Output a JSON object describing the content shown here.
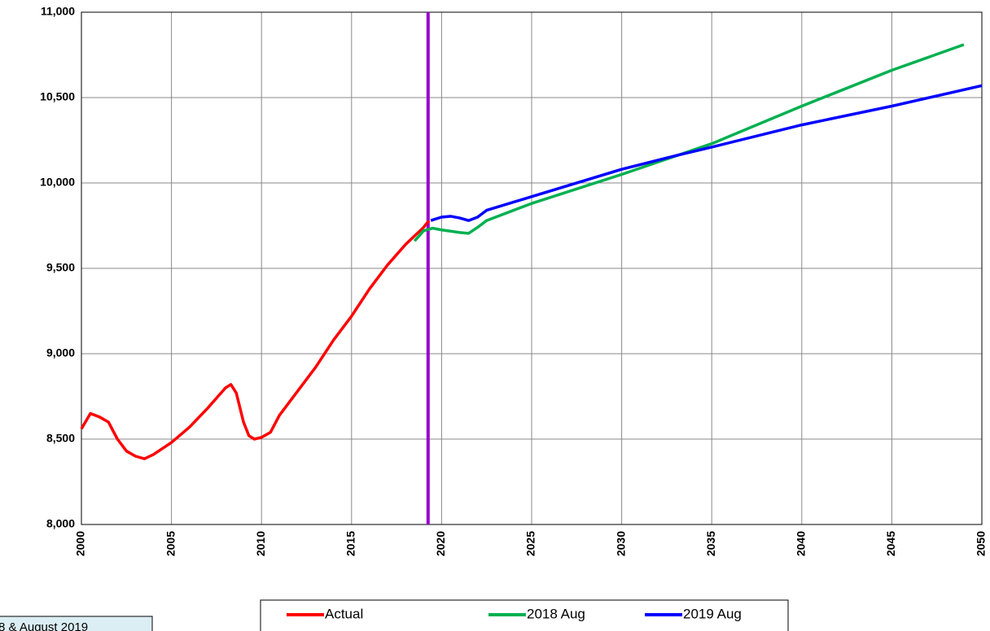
{
  "chart_data": {
    "type": "line",
    "series": [
      {
        "name": "Actual",
        "color": "#ff0000",
        "x": [
          2000,
          2000.5,
          2001,
          2001.5,
          2002,
          2002.5,
          2003,
          2003.5,
          2004,
          2005,
          2006,
          2007,
          2008,
          2008.3,
          2008.6,
          2009,
          2009.3,
          2009.6,
          2010,
          2010.5,
          2011,
          2012,
          2013,
          2014,
          2015,
          2016,
          2017,
          2018,
          2019,
          2019.3
        ],
        "values": [
          8560,
          8650,
          8630,
          8600,
          8500,
          8430,
          8400,
          8385,
          8410,
          8480,
          8570,
          8680,
          8800,
          8820,
          8770,
          8600,
          8520,
          8500,
          8510,
          8540,
          8640,
          8780,
          8920,
          9080,
          9220,
          9380,
          9520,
          9640,
          9740,
          9780
        ]
      },
      {
        "name": "2018 Aug",
        "color": "#00b050",
        "x": [
          2018.5,
          2019,
          2019.5,
          2020,
          2021,
          2021.5,
          2022,
          2022.5,
          2025,
          2030,
          2035,
          2040,
          2045,
          2049
        ],
        "values": [
          9660,
          9720,
          9735,
          9725,
          9710,
          9705,
          9740,
          9780,
          9880,
          10050,
          10230,
          10450,
          10660,
          10810
        ]
      },
      {
        "name": "2019 Aug",
        "color": "#0000ff",
        "x": [
          2019.4,
          2020,
          2020.5,
          2021,
          2021.5,
          2022,
          2022.5,
          2025,
          2030,
          2033,
          2035,
          2040,
          2045,
          2050
        ],
        "values": [
          9780,
          9800,
          9805,
          9795,
          9780,
          9800,
          9840,
          9920,
          10080,
          10160,
          10210,
          10340,
          10450,
          10570
        ]
      }
    ],
    "vline": {
      "x": 2019.25,
      "color": "#9900cc"
    },
    "annotation": "8 & August 2019",
    "xlim": [
      2000,
      2050
    ],
    "xticks": [
      2000,
      2005,
      2010,
      2015,
      2020,
      2025,
      2030,
      2035,
      2040,
      2045,
      2050
    ],
    "ylim": [
      8000,
      11000
    ],
    "yticks": [
      {
        "value": 8000,
        "label": "8,000"
      },
      {
        "value": 8500,
        "label": "8,500"
      },
      {
        "value": 9000,
        "label": "9,000"
      },
      {
        "value": 9500,
        "label": "9,500"
      },
      {
        "value": 10000,
        "label": "10,000"
      },
      {
        "value": 10500,
        "label": "10,500"
      },
      {
        "value": 11000,
        "label": "11,000"
      }
    ],
    "grid": true,
    "legend": "bottom"
  }
}
